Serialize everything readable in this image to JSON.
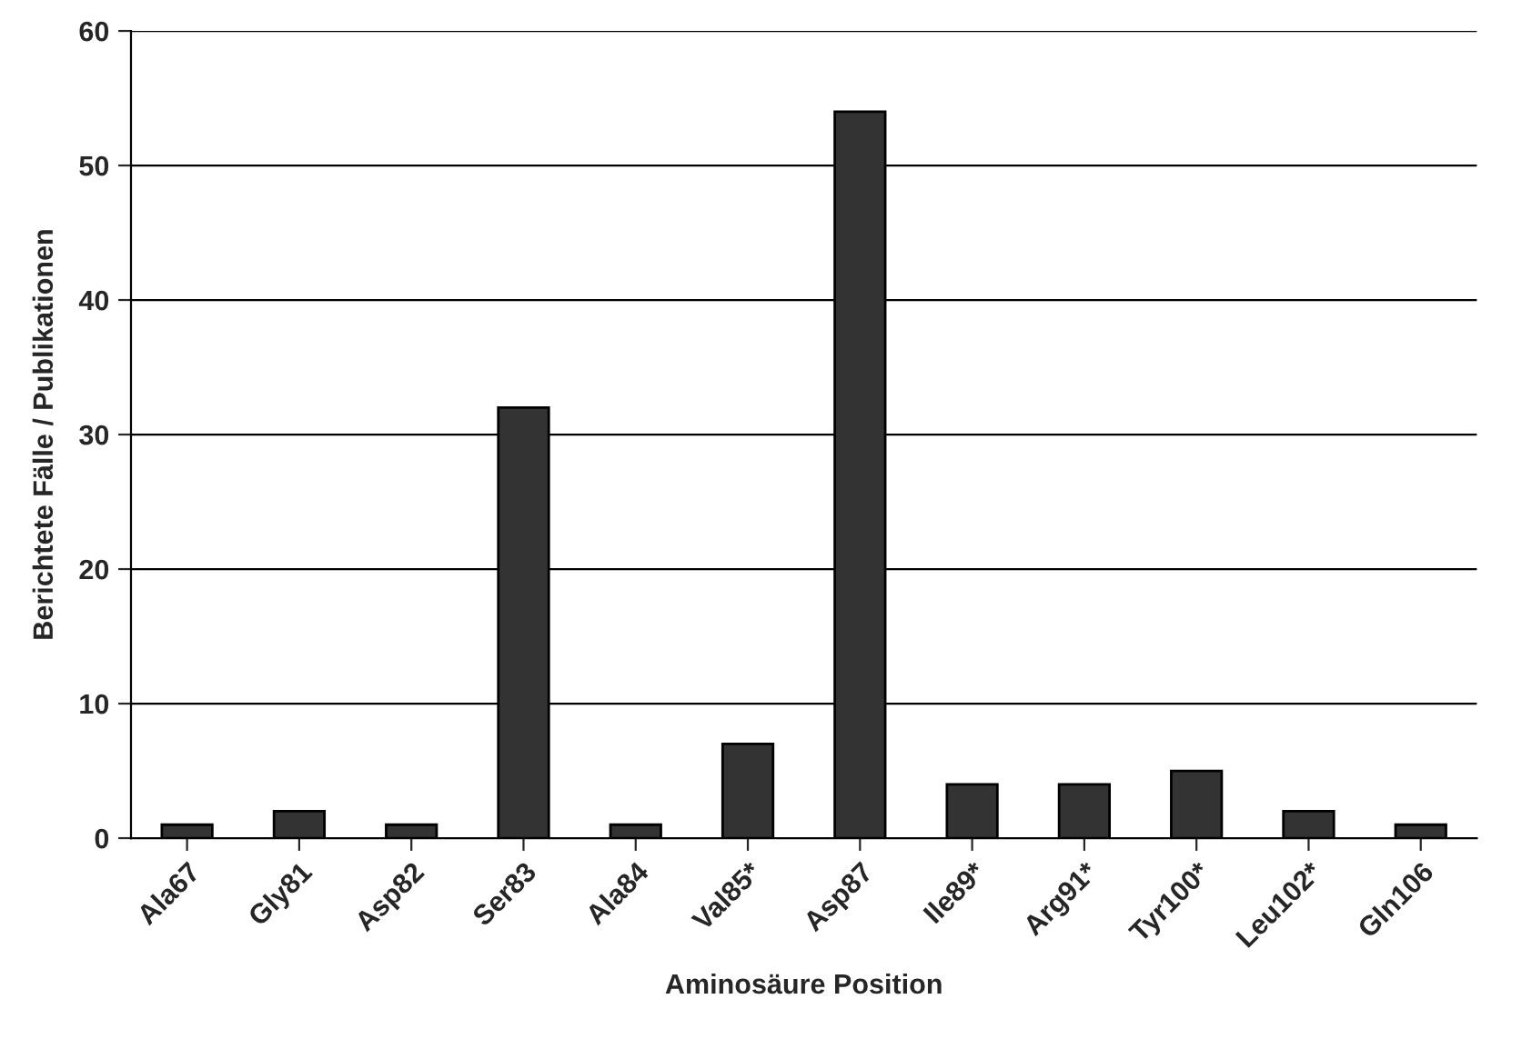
{
  "chart_data": {
    "type": "bar",
    "xlabel": "Aminosäure Position",
    "ylabel": "Berichtete Fälle / Publikationen",
    "categories": [
      "Ala67",
      "Gly81",
      "Asp82",
      "Ser83",
      "Ala84",
      "Val85*",
      "Asp87",
      "Ile89*",
      "Arg91*",
      "Tyr100*",
      "Leu102*",
      "Gln106"
    ],
    "values": [
      1,
      2,
      1,
      32,
      1,
      7,
      54,
      4,
      4,
      5,
      2,
      1
    ],
    "color": "#333333",
    "ylim": [
      0,
      60
    ],
    "yticks": [
      0,
      10,
      20,
      30,
      40,
      50,
      60
    ],
    "grid": "y"
  }
}
